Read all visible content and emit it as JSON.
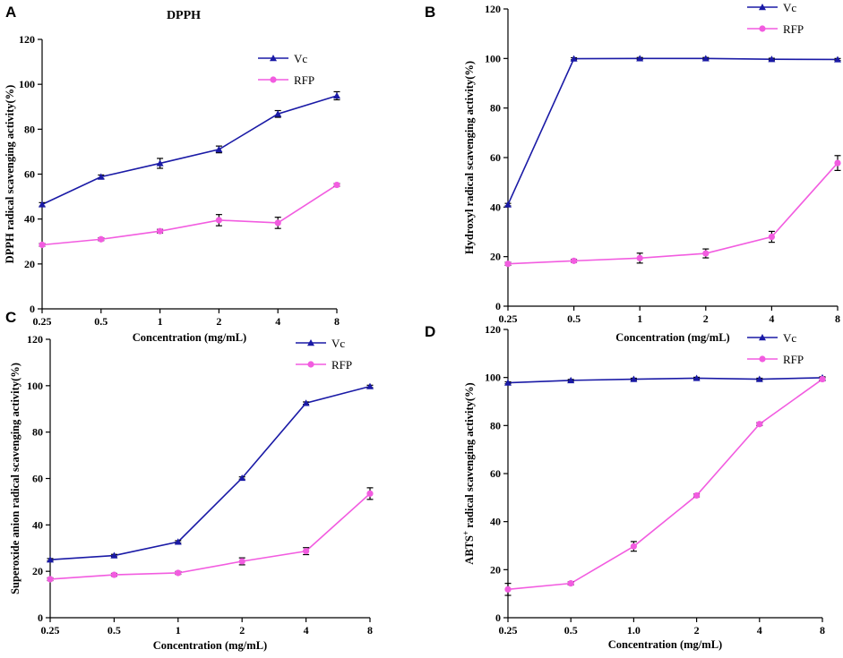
{
  "colors": {
    "vc": "#1a1aa6",
    "rfp": "#f25ce0",
    "axis": "#000000"
  },
  "chart_data": [
    {
      "panel": "A",
      "type": "line",
      "title": "DPPH",
      "xlabel": "Concentration (mg/mL)",
      "ylabel": "DPPH radical scavenging activity(%)",
      "categories": [
        "0.25",
        "0.5",
        "1",
        "2",
        "4",
        "8"
      ],
      "ylim": [
        0,
        120
      ],
      "yticks": [
        0,
        20,
        40,
        60,
        80,
        100,
        120
      ],
      "legend_position": "top-right",
      "series": [
        {
          "name": "Vc",
          "marker": "triangle",
          "values": [
            46.5,
            58.8,
            64.8,
            71.0,
            86.8,
            94.9
          ],
          "errors": [
            0.8,
            0.8,
            2.2,
            1.5,
            1.5,
            1.8
          ]
        },
        {
          "name": "RFP",
          "marker": "circle",
          "values": [
            28.5,
            31.0,
            34.6,
            39.5,
            38.3,
            55.2
          ],
          "errors": [
            0.6,
            0.6,
            0.8,
            2.5,
            2.5,
            0.6
          ]
        }
      ]
    },
    {
      "panel": "B",
      "type": "line",
      "title": "",
      "xlabel": "Concentration (mg/mL)",
      "ylabel": "Hydroxyl radical scavenging activity(%)",
      "categories": [
        "0.25",
        "0.5",
        "1",
        "2",
        "4",
        "8"
      ],
      "ylim": [
        0,
        120
      ],
      "yticks": [
        0,
        20,
        40,
        60,
        80,
        100,
        120
      ],
      "legend_position": "top-right",
      "series": [
        {
          "name": "Vc",
          "marker": "triangle",
          "values": [
            41.0,
            99.9,
            100.0,
            100.0,
            99.7,
            99.6
          ],
          "errors": [
            0.5,
            0.4,
            0.4,
            0.4,
            0.4,
            0.4
          ]
        },
        {
          "name": "RFP",
          "marker": "circle",
          "values": [
            17.1,
            18.3,
            19.4,
            21.3,
            28.0,
            57.8
          ],
          "errors": [
            0.6,
            0.6,
            2.0,
            1.8,
            2.2,
            3.0
          ]
        }
      ]
    },
    {
      "panel": "C",
      "type": "line",
      "title": "",
      "xlabel": "Concentration (mg/mL)",
      "ylabel": "Superoxide anion radical scavenging activity(%)",
      "categories": [
        "0.25",
        "0.5",
        "1",
        "2",
        "4",
        "8"
      ],
      "ylim": [
        0,
        120
      ],
      "yticks": [
        0,
        20,
        40,
        60,
        80,
        100,
        120
      ],
      "legend_position": "top-right",
      "series": [
        {
          "name": "Vc",
          "marker": "triangle",
          "values": [
            25.0,
            26.8,
            32.7,
            60.2,
            92.5,
            99.7
          ],
          "errors": [
            0.5,
            0.5,
            0.5,
            0.5,
            0.5,
            0.5
          ]
        },
        {
          "name": "RFP",
          "marker": "circle",
          "values": [
            16.6,
            18.5,
            19.3,
            24.3,
            28.7,
            53.5
          ],
          "errors": [
            0.6,
            0.6,
            0.6,
            1.5,
            1.5,
            2.5
          ]
        }
      ]
    },
    {
      "panel": "D",
      "type": "line",
      "title": "",
      "xlabel": "Concentration (mg/mL)",
      "ylabel_prefix": "ABTS",
      "ylabel_sup": "+",
      "ylabel_suffix": " radical scavenging activity(%)",
      "categories": [
        "0.25",
        "0.5",
        "1.0",
        "2",
        "4",
        "8"
      ],
      "ylim": [
        0,
        120
      ],
      "yticks": [
        0,
        20,
        40,
        60,
        80,
        100,
        120
      ],
      "legend_position": "top-right",
      "series": [
        {
          "name": "Vc",
          "marker": "triangle",
          "values": [
            97.8,
            98.8,
            99.3,
            99.7,
            99.3,
            99.9
          ],
          "errors": [
            0.4,
            0.4,
            0.4,
            0.4,
            0.4,
            0.4
          ]
        },
        {
          "name": "RFP",
          "marker": "circle",
          "values": [
            11.8,
            14.3,
            29.7,
            50.9,
            80.6,
            99.3
          ],
          "errors": [
            2.5,
            0.6,
            2.0,
            0.6,
            0.6,
            0.6
          ]
        }
      ]
    }
  ]
}
